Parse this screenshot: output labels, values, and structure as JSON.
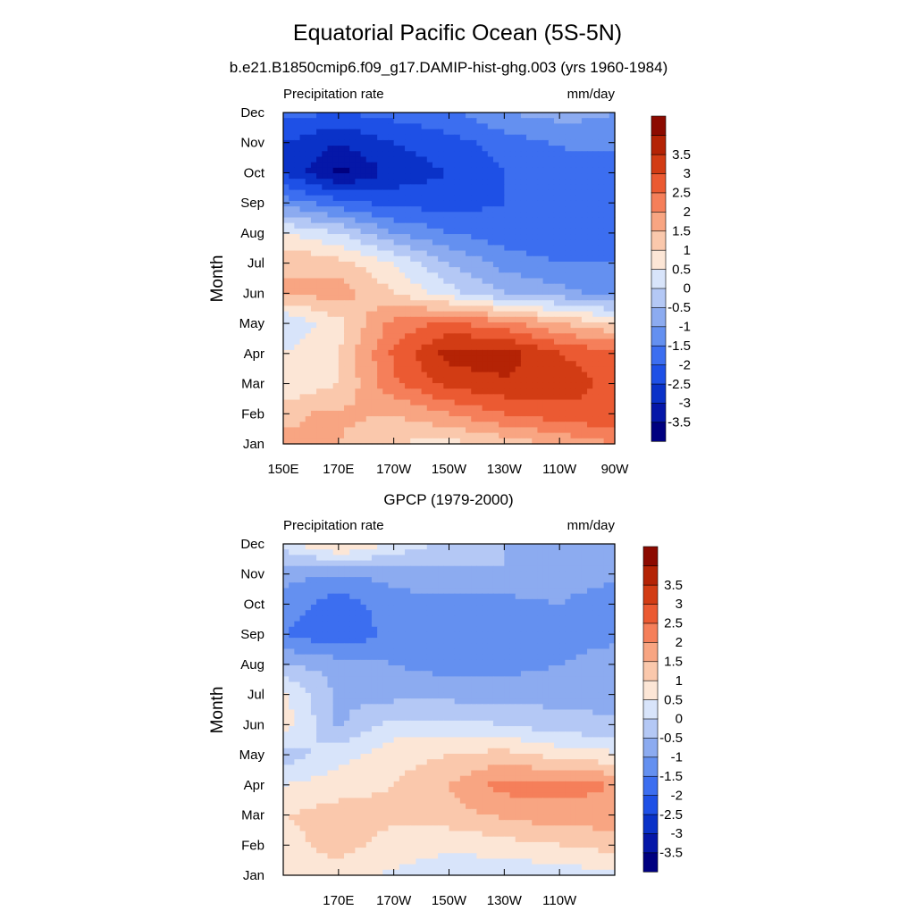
{
  "title": "Equatorial Pacific Ocean (5S-5N)",
  "subtitle": "b.e21.B1850cmip6.f09_g17.DAMIP-hist-ghg.003 (yrs 1960-1984)",
  "colorbar": {
    "colors": [
      "#000080",
      "#0517a8",
      "#0a32c8",
      "#1e50e6",
      "#3c6ef0",
      "#6490f0",
      "#8cabf0",
      "#b4c8f5",
      "#d8e4fa",
      "#fce6d6",
      "#fac8ac",
      "#f8a582",
      "#f57f5a",
      "#eb5a32",
      "#d23c14",
      "#b42305",
      "#8c0a00"
    ],
    "labels": [
      "-3.5",
      "-3",
      "-2.5",
      "-2",
      "-1.5",
      "-1",
      "-0.5",
      "0",
      "0.5",
      "1",
      "1.5",
      "2",
      "2.5",
      "3",
      "3.5"
    ]
  },
  "panels": [
    {
      "subtitle": "",
      "left_label": "Precipitation rate",
      "right_label": "mm/day",
      "ylabel": "Month",
      "months": [
        "Jan",
        "Feb",
        "Mar",
        "Apr",
        "May",
        "Jun",
        "Jul",
        "Aug",
        "Sep",
        "Oct",
        "Nov",
        "Dec"
      ],
      "xticks": [
        "150E",
        "170E",
        "170W",
        "150W",
        "130W",
        "110W",
        "90W"
      ]
    },
    {
      "subtitle": "GPCP (1979-2000)",
      "left_label": "Precipitation rate",
      "right_label": "mm/day",
      "ylabel": "Month",
      "months": [
        "Jan",
        "Feb",
        "Mar",
        "Apr",
        "May",
        "Jun",
        "Jul",
        "Aug",
        "Sep",
        "Oct",
        "Nov",
        "Dec"
      ],
      "xticks": [
        "170E",
        "170W",
        "150W",
        "130W",
        "110W"
      ]
    }
  ],
  "chart_data": [
    {
      "type": "heatmap",
      "title": "Equatorial Pacific Ocean (5S-5N)",
      "subtitle": "b.e21.B1850cmip6.f09_g17.DAMIP-hist-ghg.003 (yrs 1960-1984)",
      "left_label": "Precipitation rate",
      "units": "mm/day",
      "ylabel": "Month",
      "x": [
        150,
        170,
        190,
        210,
        230,
        250,
        270
      ],
      "y": [
        "Jan",
        "Feb",
        "Mar",
        "Apr",
        "May",
        "Jun",
        "Jul",
        "Aug",
        "Sep",
        "Oct",
        "Nov",
        "Dec"
      ],
      "xlim": [
        150,
        270
      ],
      "levels": [
        -3.5,
        -3,
        -2.5,
        -2,
        -1.5,
        -1,
        -0.5,
        0,
        0.5,
        1,
        1.5,
        2,
        2.5,
        3,
        3.5
      ],
      "z": [
        [
          1.6,
          1.5,
          1.0,
          0.8,
          1.2,
          1.6,
          2.0
        ],
        [
          1.4,
          1.6,
          1.5,
          2.0,
          2.5,
          2.8,
          3.0
        ],
        [
          0.5,
          1.0,
          2.4,
          3.2,
          3.4,
          3.3,
          2.8
        ],
        [
          0.5,
          1.0,
          2.6,
          3.7,
          3.8,
          3.0,
          2.7
        ],
        [
          0.0,
          0.8,
          2.2,
          2.6,
          2.2,
          1.5,
          1.0
        ],
        [
          1.5,
          1.8,
          1.0,
          0.2,
          -0.5,
          -0.8,
          -1.2
        ],
        [
          1.5,
          1.2,
          0.5,
          -0.5,
          -1.2,
          -1.5,
          -1.5
        ],
        [
          0.5,
          0.0,
          -1.0,
          -1.5,
          -1.8,
          -2.0,
          -2.0
        ],
        [
          -1.2,
          -1.8,
          -2.2,
          -2.2,
          -2.0,
          -2.0,
          -2.0
        ],
        [
          -2.5,
          -3.7,
          -2.8,
          -2.5,
          -2.0,
          -2.0,
          -2.0
        ],
        [
          -2.5,
          -3.0,
          -2.5,
          -2.2,
          -1.8,
          -1.4,
          -1.2
        ],
        [
          -1.8,
          -2.0,
          -1.8,
          -1.6,
          -1.0,
          -0.8,
          -1.0
        ]
      ]
    },
    {
      "type": "heatmap",
      "title": "GPCP (1979-2000)",
      "left_label": "Precipitation rate",
      "units": "mm/day",
      "ylabel": "Month",
      "x": [
        150,
        170,
        190,
        210,
        230,
        250,
        270
      ],
      "y": [
        "Jan",
        "Feb",
        "Mar",
        "Apr",
        "May",
        "Jun",
        "Jul",
        "Aug",
        "Sep",
        "Oct",
        "Nov",
        "Dec"
      ],
      "xlim": [
        150,
        270
      ],
      "levels": [
        -3.5,
        -3,
        -2.5,
        -2,
        -1.5,
        -1,
        -0.5,
        0,
        0.5,
        1,
        1.5,
        2,
        2.5,
        3,
        3.5
      ],
      "z": [
        [
          0.6,
          0.8,
          0.4,
          0.2,
          0.1,
          0.2,
          0.4
        ],
        [
          0.8,
          1.2,
          0.8,
          0.6,
          0.8,
          1.0,
          1.2
        ],
        [
          1.0,
          1.2,
          1.1,
          1.3,
          1.6,
          1.8,
          1.8
        ],
        [
          0.5,
          0.8,
          1.0,
          1.5,
          2.2,
          2.2,
          2.0
        ],
        [
          -0.3,
          0.3,
          0.8,
          1.0,
          1.2,
          0.8,
          0.6
        ],
        [
          0.8,
          -0.6,
          0.2,
          0.2,
          0.0,
          -0.3,
          -0.4
        ],
        [
          0.6,
          -0.6,
          -0.7,
          -0.7,
          -0.7,
          -0.7,
          -0.7
        ],
        [
          -0.5,
          -0.7,
          -1.0,
          -1.2,
          -1.2,
          -1.0,
          -0.8
        ],
        [
          -1.5,
          -2.0,
          -1.3,
          -1.3,
          -1.5,
          -1.2,
          -1.1
        ],
        [
          -1.2,
          -1.8,
          -1.2,
          -1.2,
          -1.2,
          -1.0,
          -1.5
        ],
        [
          -0.8,
          -1.0,
          -0.8,
          -0.6,
          -0.5,
          -0.6,
          -0.8
        ],
        [
          0.2,
          1.2,
          0.4,
          -0.2,
          -0.5,
          -0.6,
          -0.6
        ]
      ]
    }
  ]
}
